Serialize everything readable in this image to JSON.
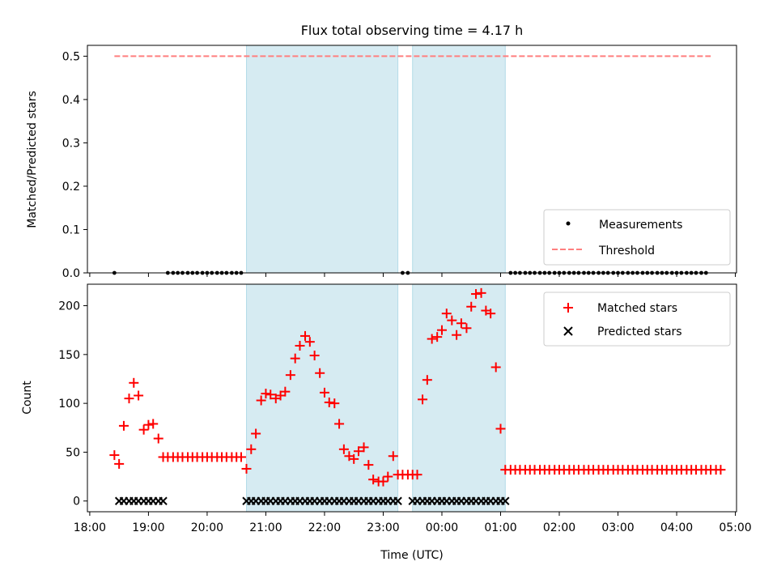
{
  "chart_data": [
    {
      "type": "scatter",
      "panel": "top",
      "title": "Flux total observing time = 4.17 h",
      "ylabel": "Matched/Predicted stars",
      "ylim": [
        0,
        0.525
      ],
      "yticks": [
        0.0,
        0.1,
        0.2,
        0.3,
        0.4,
        0.5
      ],
      "ytick_labels": [
        "0.0",
        "0.1",
        "0.2",
        "0.3",
        "0.4",
        "0.5"
      ],
      "legend_position": "lower-right",
      "shaded_intervals_hours": [
        [
          20.67,
          23.25
        ],
        [
          23.5,
          25.08
        ]
      ],
      "series": [
        {
          "name": "Measurements",
          "marker": "dot",
          "color": "#000000",
          "x_hours": [
            18.42,
            19.33,
            19.42,
            19.5,
            19.58,
            19.67,
            19.75,
            19.83,
            19.92,
            20.0,
            20.08,
            20.17,
            20.25,
            20.33,
            20.42,
            20.5,
            20.58,
            23.33,
            23.42,
            25.17,
            25.25,
            25.33,
            25.42,
            25.5,
            25.58,
            25.67,
            25.75,
            25.83,
            25.92,
            26.0,
            26.08,
            26.17,
            26.25,
            26.33,
            26.42,
            26.5,
            26.58,
            26.67,
            26.75,
            26.83,
            26.92,
            27.0,
            27.08,
            27.17,
            27.25,
            27.33,
            27.42,
            27.5,
            27.58,
            27.67,
            27.75,
            27.83,
            27.92,
            28.0,
            28.08,
            28.17,
            28.25,
            28.33,
            28.42,
            28.5
          ],
          "y": 0.0
        },
        {
          "name": "Threshold",
          "marker": "dashed-line",
          "color": "#ff7f7f",
          "x_hours": [
            18.42,
            28.58
          ],
          "y": 0.5
        }
      ]
    },
    {
      "type": "scatter",
      "panel": "bottom",
      "xlabel": "Time (UTC)",
      "ylabel": "Count",
      "ylim": [
        -11,
        222
      ],
      "yticks": [
        0,
        50,
        100,
        150,
        200
      ],
      "ytick_labels": [
        "0",
        "50",
        "100",
        "150",
        "200"
      ],
      "xlim_hours": [
        17.96,
        29.02
      ],
      "xticks_hours": [
        18,
        19,
        20,
        21,
        22,
        23,
        24,
        25,
        26,
        27,
        28,
        29
      ],
      "xtick_labels": [
        "18:00",
        "19:00",
        "20:00",
        "21:00",
        "22:00",
        "23:00",
        "00:00",
        "01:00",
        "02:00",
        "03:00",
        "04:00",
        "05:00"
      ],
      "legend_position": "upper-right",
      "shaded_intervals_hours": [
        [
          20.67,
          23.25
        ],
        [
          23.5,
          25.08
        ]
      ],
      "series": [
        {
          "name": "Matched stars",
          "marker": "plus",
          "color": "#ff0000",
          "points": [
            [
              18.42,
              47
            ],
            [
              18.5,
              38
            ],
            [
              18.58,
              77
            ],
            [
              18.67,
              105
            ],
            [
              18.75,
              121
            ],
            [
              18.83,
              108
            ],
            [
              18.92,
              73
            ],
            [
              19.0,
              78
            ],
            [
              19.08,
              79
            ],
            [
              19.17,
              64
            ],
            [
              19.25,
              45
            ],
            [
              19.33,
              45
            ],
            [
              19.42,
              45
            ],
            [
              19.5,
              45
            ],
            [
              19.58,
              45
            ],
            [
              19.67,
              45
            ],
            [
              19.75,
              45
            ],
            [
              19.83,
              45
            ],
            [
              19.92,
              45
            ],
            [
              20.0,
              45
            ],
            [
              20.08,
              45
            ],
            [
              20.17,
              45
            ],
            [
              20.25,
              45
            ],
            [
              20.33,
              45
            ],
            [
              20.42,
              45
            ],
            [
              20.5,
              45
            ],
            [
              20.58,
              45
            ],
            [
              20.67,
              33
            ],
            [
              20.75,
              53
            ],
            [
              20.83,
              69
            ],
            [
              20.92,
              103
            ],
            [
              21.0,
              110
            ],
            [
              21.08,
              109
            ],
            [
              21.17,
              105
            ],
            [
              21.25,
              108
            ],
            [
              21.33,
              112
            ],
            [
              21.42,
              129
            ],
            [
              21.5,
              146
            ],
            [
              21.58,
              159
            ],
            [
              21.67,
              169
            ],
            [
              21.75,
              163
            ],
            [
              21.83,
              149
            ],
            [
              21.92,
              131
            ],
            [
              22.0,
              111
            ],
            [
              22.08,
              101
            ],
            [
              22.17,
              100
            ],
            [
              22.25,
              79
            ],
            [
              22.33,
              53
            ],
            [
              22.42,
              46
            ],
            [
              22.5,
              43
            ],
            [
              22.58,
              51
            ],
            [
              22.67,
              55
            ],
            [
              22.75,
              37
            ],
            [
              22.83,
              22
            ],
            [
              22.92,
              20
            ],
            [
              23.0,
              20
            ],
            [
              23.08,
              25
            ],
            [
              23.17,
              46
            ],
            [
              23.25,
              27
            ],
            [
              23.33,
              27
            ],
            [
              23.42,
              27
            ],
            [
              23.5,
              27
            ],
            [
              23.58,
              27
            ],
            [
              23.67,
              104
            ],
            [
              23.75,
              124
            ],
            [
              23.83,
              166
            ],
            [
              23.92,
              168
            ],
            [
              24.0,
              175
            ],
            [
              24.08,
              192
            ],
            [
              24.17,
              185
            ],
            [
              24.25,
              170
            ],
            [
              24.33,
              182
            ],
            [
              24.42,
              177
            ],
            [
              24.5,
              199
            ],
            [
              24.58,
              212
            ],
            [
              24.67,
              213
            ],
            [
              24.75,
              195
            ],
            [
              24.83,
              192
            ],
            [
              24.92,
              137
            ],
            [
              25.0,
              74
            ],
            [
              25.08,
              32
            ],
            [
              25.17,
              32
            ],
            [
              25.25,
              32
            ],
            [
              25.33,
              32
            ],
            [
              25.42,
              32
            ],
            [
              25.5,
              32
            ],
            [
              25.58,
              32
            ],
            [
              25.67,
              32
            ],
            [
              25.75,
              32
            ],
            [
              25.83,
              32
            ],
            [
              25.92,
              32
            ],
            [
              26.0,
              32
            ],
            [
              26.08,
              32
            ],
            [
              26.17,
              32
            ],
            [
              26.25,
              32
            ],
            [
              26.33,
              32
            ],
            [
              26.42,
              32
            ],
            [
              26.5,
              32
            ],
            [
              26.58,
              32
            ],
            [
              26.67,
              32
            ],
            [
              26.75,
              32
            ],
            [
              26.83,
              32
            ],
            [
              26.92,
              32
            ],
            [
              27.0,
              32
            ],
            [
              27.08,
              32
            ],
            [
              27.17,
              32
            ],
            [
              27.25,
              32
            ],
            [
              27.33,
              32
            ],
            [
              27.42,
              32
            ],
            [
              27.5,
              32
            ],
            [
              27.58,
              32
            ],
            [
              27.67,
              32
            ],
            [
              27.75,
              32
            ],
            [
              27.83,
              32
            ],
            [
              27.92,
              32
            ],
            [
              28.0,
              32
            ],
            [
              28.08,
              32
            ],
            [
              28.17,
              32
            ],
            [
              28.25,
              32
            ],
            [
              28.33,
              32
            ],
            [
              28.42,
              32
            ],
            [
              28.5,
              32
            ],
            [
              28.58,
              32
            ],
            [
              28.67,
              32
            ],
            [
              28.75,
              32
            ]
          ]
        },
        {
          "name": "Predicted stars",
          "marker": "x",
          "color": "#000000",
          "y": 0,
          "x_hours": [
            18.5,
            18.58,
            18.67,
            18.75,
            18.83,
            18.92,
            19.0,
            19.08,
            19.17,
            19.25,
            20.67,
            20.75,
            20.83,
            20.92,
            21.0,
            21.08,
            21.17,
            21.25,
            21.33,
            21.42,
            21.5,
            21.58,
            21.67,
            21.75,
            21.83,
            21.92,
            22.0,
            22.08,
            22.17,
            22.25,
            22.33,
            22.42,
            22.5,
            22.58,
            22.67,
            22.75,
            22.83,
            22.92,
            23.0,
            23.08,
            23.17,
            23.25,
            23.5,
            23.58,
            23.67,
            23.75,
            23.83,
            23.92,
            24.0,
            24.08,
            24.17,
            24.25,
            24.33,
            24.42,
            24.5,
            24.58,
            24.67,
            24.75,
            24.83,
            24.92,
            25.0,
            25.08
          ]
        }
      ]
    }
  ],
  "colors": {
    "shade": "#add8e6",
    "matched": "#ff0000",
    "threshold": "#ff7f7f",
    "black": "#000000"
  }
}
